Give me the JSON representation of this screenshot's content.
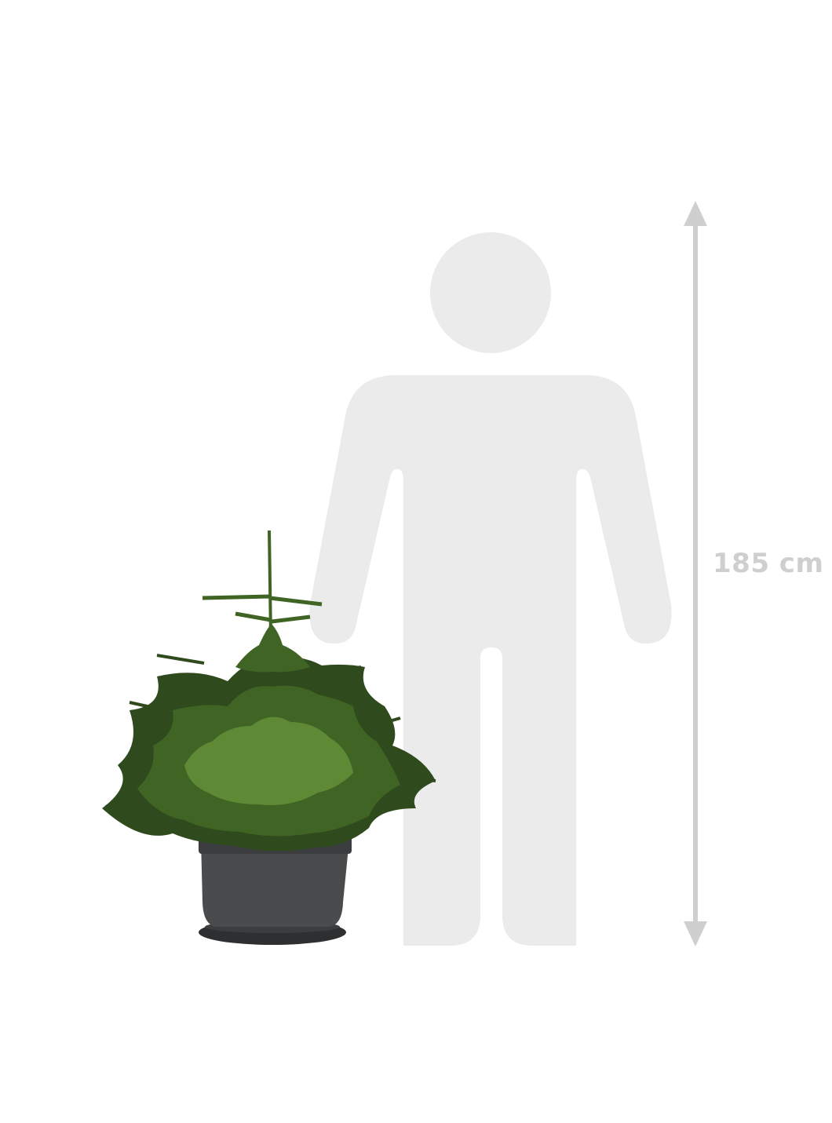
{
  "height_label": "185 cm",
  "colors": {
    "background": "#ffffff",
    "silhouette": "#ebebeb",
    "measure_line": "#cfcfcf",
    "label": "#cfcfcf",
    "pot": "#4a4b4d",
    "pot_rim": "#3c3d3f",
    "saucer": "#2e2f31",
    "foliage_dark": "#2f4a1c",
    "foliage_mid": "#3f6424",
    "foliage_light": "#5e8a36"
  },
  "icons": {
    "person": "person-silhouette-icon",
    "arrow_up": "arrow-up-icon",
    "arrow_down": "arrow-down-icon"
  }
}
